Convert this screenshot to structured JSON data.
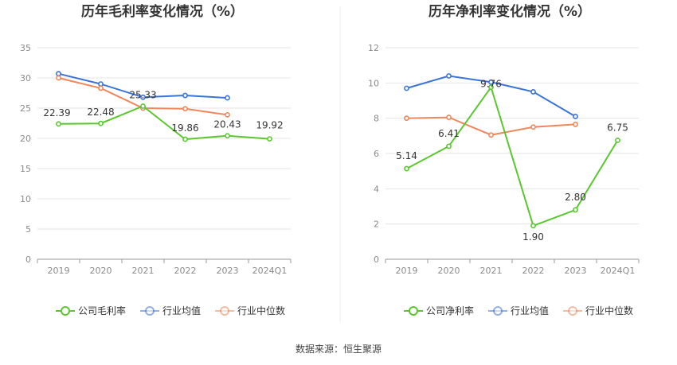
{
  "source_text": "数据来源：恒生聚源",
  "colors": {
    "company": "#5ac72f",
    "industry_avg": "#3a73d9",
    "industry_median": "#f0865a"
  },
  "chart_data": [
    {
      "type": "line",
      "title": "历年毛利率变化情况（%）",
      "categories": [
        "2019",
        "2020",
        "2021",
        "2022",
        "2023",
        "2024Q1"
      ],
      "ylim": [
        0,
        35
      ],
      "yticks": [
        "0",
        "5",
        "10",
        "15",
        "20",
        "25",
        "30",
        "35"
      ],
      "grid": true,
      "legend_position": "bottom",
      "series": [
        {
          "name": "公司毛利率",
          "key": "company",
          "values": [
            22.39,
            22.48,
            25.33,
            19.86,
            20.43,
            19.92
          ],
          "labels": [
            "22.39",
            "22.48",
            "25.33",
            "19.86",
            "20.43",
            "19.92"
          ]
        },
        {
          "name": "行业均值",
          "key": "industry_avg",
          "values": [
            30.7,
            29.0,
            26.8,
            27.1,
            26.7,
            null
          ]
        },
        {
          "name": "行业中位数",
          "key": "industry_median",
          "values": [
            30.0,
            28.3,
            25.0,
            24.9,
            23.9,
            null
          ]
        }
      ]
    },
    {
      "type": "line",
      "title": "历年净利率变化情况（%）",
      "categories": [
        "2019",
        "2020",
        "2021",
        "2022",
        "2023",
        "2024Q1"
      ],
      "ylim": [
        0,
        12
      ],
      "yticks": [
        "0",
        "2",
        "4",
        "6",
        "8",
        "10",
        "12"
      ],
      "grid": true,
      "legend_position": "bottom",
      "series": [
        {
          "name": "公司净利率",
          "key": "company",
          "values": [
            5.14,
            6.41,
            9.76,
            1.9,
            2.8,
            6.75
          ],
          "labels": [
            "5.14",
            "6.41",
            "9.76",
            "1.90",
            "2.80",
            "6.75"
          ]
        },
        {
          "name": "行业均值",
          "key": "industry_avg",
          "values": [
            9.7,
            10.4,
            10.05,
            9.5,
            8.1,
            null
          ]
        },
        {
          "name": "行业中位数",
          "key": "industry_median",
          "values": [
            8.0,
            8.05,
            7.05,
            7.5,
            7.65,
            null
          ]
        }
      ]
    }
  ]
}
